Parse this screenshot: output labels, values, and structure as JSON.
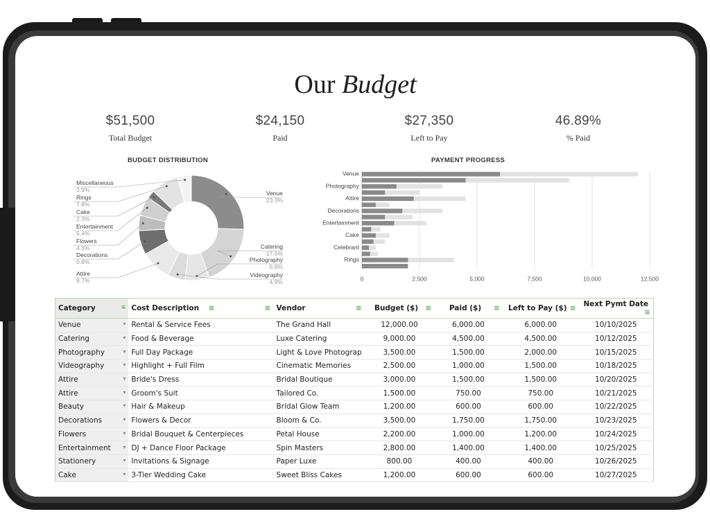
{
  "header": {
    "title_plain": "Our",
    "title_italic": "Budget"
  },
  "stats": [
    {
      "value": "$51,500",
      "label": "Total Budget"
    },
    {
      "value": "$24,150",
      "label": "Paid"
    },
    {
      "value": "$27,350",
      "label": "Left to Pay"
    },
    {
      "value": "46.89%",
      "label": "% Paid"
    }
  ],
  "chart_data": [
    {
      "type": "pie",
      "title": "BUDGET DISTRIBUTION",
      "categories": [
        "Venue",
        "Catering",
        "Photography",
        "Videography",
        "Attire",
        "Decorations",
        "Flowers",
        "Entertainment",
        "Cake",
        "Rings",
        "Miscellaneous"
      ],
      "values": [
        23.3,
        17.5,
        6.8,
        4.9,
        8.7,
        6.8,
        4.3,
        5.4,
        2.3,
        7.8,
        3.9
      ],
      "labels": [
        "23.3%",
        "17.5%",
        "6.8%",
        "4.9%",
        "8.7%",
        "6.8%",
        "4.3%",
        "5.4%",
        "2.3%",
        "7.8%",
        "3.9%"
      ],
      "colors": [
        "#8c8c8c",
        "#d4d4d4",
        "#e6e6e6",
        "#dcdcdc",
        "#e9e9e9",
        "#6e6e6e",
        "#bdbdbd",
        "#cfcfcf",
        "#7a7a7a",
        "#e3e3e3",
        "#f3f3f3"
      ]
    },
    {
      "type": "bar",
      "orientation": "horizontal",
      "title": "PAYMENT PROGRESS",
      "categories": [
        "Venue",
        "Photography",
        "Attire",
        "Decorations",
        "Entertainment",
        "Cake",
        "Celebrant",
        "Rings"
      ],
      "rows": [
        {
          "category": "Venue",
          "paid": 6000,
          "budget": 12000
        },
        {
          "category": "",
          "paid": 4500,
          "budget": 9000
        },
        {
          "category": "Photography",
          "paid": 1500,
          "budget": 3500
        },
        {
          "category": "",
          "paid": 1000,
          "budget": 2500
        },
        {
          "category": "Attire",
          "paid": 2250,
          "budget": 4500
        },
        {
          "category": "",
          "paid": 600,
          "budget": 1200
        },
        {
          "category": "Decorations",
          "paid": 1750,
          "budget": 3500
        },
        {
          "category": "",
          "paid": 1000,
          "budget": 2200
        },
        {
          "category": "Entertainment",
          "paid": 1400,
          "budget": 2800
        },
        {
          "category": "",
          "paid": 400,
          "budget": 800
        },
        {
          "category": "Cake",
          "paid": 600,
          "budget": 1200
        },
        {
          "category": "",
          "paid": 500,
          "budget": 1000
        },
        {
          "category": "Celebrant",
          "paid": 300,
          "budget": 600
        },
        {
          "category": "",
          "paid": 350,
          "budget": 700
        },
        {
          "category": "Rings",
          "paid": 2000,
          "budget": 4000
        },
        {
          "category": "",
          "paid": 2000,
          "budget": 2000
        }
      ],
      "xlim": [
        0,
        12500
      ],
      "xticks": [
        "0",
        "2,500",
        "5,000",
        "7,500",
        "10,000",
        "12,500"
      ],
      "colors": {
        "paid": "#8a8a8a",
        "budget": "#e2e2e2"
      },
      "grid": true
    }
  ],
  "table": {
    "headers": [
      "Category",
      "Cost Description",
      "Vendor",
      "Budget ($)",
      "Paid ($)",
      "Left to Pay ($)",
      "Next Pymt Date"
    ],
    "rows": [
      [
        "Venue",
        "Rental & Service Fees",
        "The Grand Hall",
        "12,000.00",
        "6,000.00",
        "6,000.00",
        "10/10/2025"
      ],
      [
        "Catering",
        "Food & Beverage",
        "Luxe Catering",
        "9,000.00",
        "4,500.00",
        "4,500.00",
        "10/12/2025"
      ],
      [
        "Photography",
        "Full Day Package",
        "Light & Love Photograp",
        "3,500.00",
        "1,500.00",
        "2,000.00",
        "10/15/2025"
      ],
      [
        "Videography",
        "Highlight + Full Film",
        "Cinematic Memories",
        "2,500.00",
        "1,000.00",
        "1,500.00",
        "10/18/2025"
      ],
      [
        "Attire",
        "Bride's Dress",
        "Bridal Boutique",
        "3,000.00",
        "1,500.00",
        "1,500.00",
        "10/20/2025"
      ],
      [
        "Attire",
        "Groom's Suit",
        "Tailored Co.",
        "1,500.00",
        "750.00",
        "750.00",
        "10/21/2025"
      ],
      [
        "Beauty",
        "Hair & Makeup",
        "Bridal Glow Team",
        "1,200.00",
        "600.00",
        "600.00",
        "10/22/2025"
      ],
      [
        "Decorations",
        "Flowers & Decor",
        "Bloom & Co.",
        "3,500.00",
        "1,750.00",
        "1,750.00",
        "10/23/2025"
      ],
      [
        "Flowers",
        "Bridal Bouquet & Centerpieces",
        "Petal House",
        "2,200.00",
        "1,000.00",
        "1,200.00",
        "10/24/2025"
      ],
      [
        "Entertainment",
        "DJ + Dance Floor Package",
        "Spin Masters",
        "2,800.00",
        "1,400.00",
        "1,400.00",
        "10/25/2025"
      ],
      [
        "Stationery",
        "Invitations & Signage",
        "Paper Luxe",
        "800.00",
        "400.00",
        "400.00",
        "10/26/2025"
      ],
      [
        "Cake",
        "3-Tier Wedding Cake",
        "Sweet Bliss Cakes",
        "1,200.00",
        "600.00",
        "600.00",
        "10/27/2025"
      ]
    ]
  }
}
